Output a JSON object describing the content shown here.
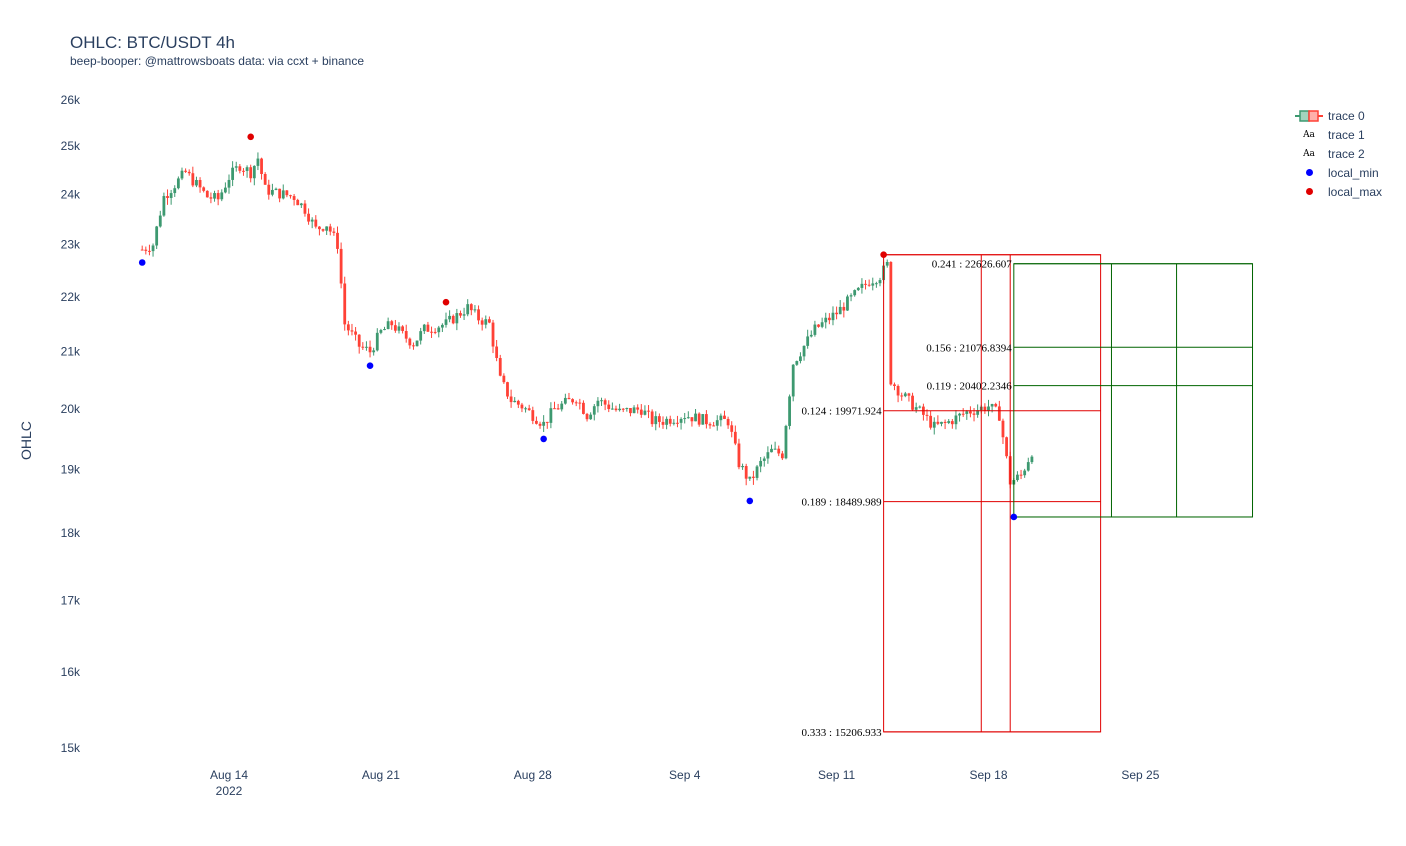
{
  "header": {
    "title": "OHLC: BTC/USDT 4h",
    "subtitle": "beep-booper: @mattrowsboats data: via ccxt + binance"
  },
  "legend": [
    {
      "label": "trace 0",
      "icon": "candlestick-icon"
    },
    {
      "label": "trace 1",
      "icon": "text-aa-icon"
    },
    {
      "label": "trace 2",
      "icon": "text-aa-icon"
    },
    {
      "label": "local_min",
      "icon": "dot-icon",
      "color": "#0000ff"
    },
    {
      "label": "local_max",
      "icon": "dot-icon",
      "color": "#e00000"
    }
  ],
  "chart_data": {
    "type": "candlestick",
    "title": "OHLC: BTC/USDT 4h",
    "subtitle": "beep-booper: @mattrowsboats data: via ccxt + binance",
    "ylabel": "OHLC",
    "xlabel": "",
    "yscale": "log",
    "ylim": [
      14900,
      26300
    ],
    "xlim": [
      "2022-08-08",
      "2022-10-01"
    ],
    "yticks": [
      {
        "value": 15000,
        "label": "15k"
      },
      {
        "value": 16000,
        "label": "16k"
      },
      {
        "value": 17000,
        "label": "17k"
      },
      {
        "value": 18000,
        "label": "18k"
      },
      {
        "value": 19000,
        "label": "19k"
      },
      {
        "value": 20000,
        "label": "20k"
      },
      {
        "value": 21000,
        "label": "21k"
      },
      {
        "value": 22000,
        "label": "22k"
      },
      {
        "value": 23000,
        "label": "23k"
      },
      {
        "value": 24000,
        "label": "24k"
      },
      {
        "value": 25000,
        "label": "25k"
      },
      {
        "value": 26000,
        "label": "26k"
      }
    ],
    "xticks": [
      {
        "date": "2022-08-14",
        "label": "Aug 14",
        "sublabel": "2022"
      },
      {
        "date": "2022-08-21",
        "label": "Aug 21",
        "sublabel": ""
      },
      {
        "date": "2022-08-28",
        "label": "Aug 28",
        "sublabel": ""
      },
      {
        "date": "2022-09-04",
        "label": "Sep 4",
        "sublabel": ""
      },
      {
        "date": "2022-09-11",
        "label": "Sep 11",
        "sublabel": ""
      },
      {
        "date": "2022-09-18",
        "label": "Sep 18",
        "sublabel": ""
      },
      {
        "date": "2022-09-25",
        "label": "Sep 25",
        "sublabel": ""
      }
    ],
    "grid": false,
    "legend_position": "top-right",
    "colors": {
      "increasing": "#3d9970",
      "decreasing": "#ff4136",
      "local_min": "#0000ff",
      "local_max": "#e00000",
      "fib_red": "#e00000",
      "fib_green": "#006400"
    },
    "price_path": [
      [
        "2022-08-10T00:00",
        22900
      ],
      [
        "2022-08-10T12:00",
        23000
      ],
      [
        "2022-08-11T00:00",
        23950
      ],
      [
        "2022-08-11T12:00",
        24200
      ],
      [
        "2022-08-12T00:00",
        24450
      ],
      [
        "2022-08-12T12:00",
        24200
      ],
      [
        "2022-08-13T00:00",
        23950
      ],
      [
        "2022-08-13T12:00",
        23900
      ],
      [
        "2022-08-14T00:00",
        24350
      ],
      [
        "2022-08-14T12:00",
        24600
      ],
      [
        "2022-08-15T00:00",
        24450
      ],
      [
        "2022-08-15T08:00",
        24750
      ],
      [
        "2022-08-15T16:00",
        24100
      ],
      [
        "2022-08-16T00:00",
        24050
      ],
      [
        "2022-08-17T00:00",
        23950
      ],
      [
        "2022-08-17T12:00",
        23700
      ],
      [
        "2022-08-18T00:00",
        23300
      ],
      [
        "2022-08-18T12:00",
        23400
      ],
      [
        "2022-08-19T00:00",
        23000
      ],
      [
        "2022-08-19T08:00",
        21500
      ],
      [
        "2022-08-19T16:00",
        21300
      ],
      [
        "2022-08-20T00:00",
        21100
      ],
      [
        "2022-08-20T12:00",
        21000
      ],
      [
        "2022-08-21T00:00",
        21350
      ],
      [
        "2022-08-21T12:00",
        21500
      ],
      [
        "2022-08-22T00:00",
        21300
      ],
      [
        "2022-08-22T12:00",
        21150
      ],
      [
        "2022-08-23T00:00",
        21400
      ],
      [
        "2022-08-24T00:00",
        21500
      ],
      [
        "2022-08-25T00:00",
        21800
      ],
      [
        "2022-08-25T12:00",
        21600
      ],
      [
        "2022-08-26T00:00",
        21500
      ],
      [
        "2022-08-26T12:00",
        20500
      ],
      [
        "2022-08-27T00:00",
        20150
      ],
      [
        "2022-08-27T12:00",
        20050
      ],
      [
        "2022-08-28T00:00",
        19900
      ],
      [
        "2022-08-28T12:00",
        19750
      ],
      [
        "2022-08-29T00:00",
        20000
      ],
      [
        "2022-08-30T00:00",
        20200
      ],
      [
        "2022-08-30T12:00",
        19900
      ],
      [
        "2022-08-31T00:00",
        20150
      ],
      [
        "2022-09-01T00:00",
        19950
      ],
      [
        "2022-09-02T00:00",
        20000
      ],
      [
        "2022-09-02T12:00",
        19800
      ],
      [
        "2022-09-03T00:00",
        19800
      ],
      [
        "2022-09-04T00:00",
        19900
      ],
      [
        "2022-09-05T00:00",
        19800
      ],
      [
        "2022-09-06T00:00",
        19800
      ],
      [
        "2022-09-06T12:00",
        19100
      ],
      [
        "2022-09-07T00:00",
        18800
      ],
      [
        "2022-09-07T12:00",
        19100
      ],
      [
        "2022-09-08T00:00",
        19300
      ],
      [
        "2022-09-08T12:00",
        19250
      ],
      [
        "2022-09-09T00:00",
        20800
      ],
      [
        "2022-09-10T00:00",
        21400
      ],
      [
        "2022-09-11T00:00",
        21700
      ],
      [
        "2022-09-12T00:00",
        22100
      ],
      [
        "2022-09-12T12:00",
        22300
      ],
      [
        "2022-09-13T00:00",
        22400
      ],
      [
        "2022-09-13T08:00",
        22600
      ],
      [
        "2022-09-13T12:00",
        20500
      ],
      [
        "2022-09-14T00:00",
        20250
      ],
      [
        "2022-09-15T00:00",
        19900
      ],
      [
        "2022-09-15T12:00",
        19700
      ],
      [
        "2022-09-16T00:00",
        19750
      ],
      [
        "2022-09-17T00:00",
        19950
      ],
      [
        "2022-09-18T00:00",
        20050
      ],
      [
        "2022-09-18T12:00",
        19900
      ],
      [
        "2022-09-19T00:00",
        18800
      ],
      [
        "2022-09-19T12:00",
        18900
      ],
      [
        "2022-09-20T00:00",
        19300
      ]
    ],
    "local_min": [
      {
        "date": "2022-08-10T00:00",
        "value": 22650
      },
      {
        "date": "2022-08-20T12:00",
        "value": 20750
      },
      {
        "date": "2022-08-28T12:00",
        "value": 19500
      },
      {
        "date": "2022-09-07T00:00",
        "value": 18500
      },
      {
        "date": "2022-09-19T04:00",
        "value": 18250
      }
    ],
    "local_max": [
      {
        "date": "2022-08-15T00:00",
        "value": 25200
      },
      {
        "date": "2022-08-24T00:00",
        "value": 21900
      },
      {
        "date": "2022-09-13T04:00",
        "value": 22800
      }
    ],
    "fib_red": {
      "x0": "2022-09-13T04:00",
      "x1": "2022-09-23T04:00",
      "vlines": [
        "2022-09-17T16:00",
        "2022-09-19T00:00"
      ],
      "levels": [
        {
          "value": 22800,
          "label": ""
        },
        {
          "value": 19971.924,
          "label": "0.124 : 19971.924"
        },
        {
          "value": 18489.989,
          "label": "0.189 : 18489.989"
        },
        {
          "value": 15206.933,
          "label": "0.333 : 15206.933"
        }
      ]
    },
    "fib_green": {
      "x0": "2022-09-19T04:00",
      "x1": "2022-09-30T04:00",
      "vlines": [
        "2022-09-23T16:00",
        "2022-09-26T16:00"
      ],
      "levels": [
        {
          "value": 22626.607,
          "label": "0.241 : 22626.607"
        },
        {
          "value": 21076.8394,
          "label": "0.156 : 21076.8394"
        },
        {
          "value": 20402.2346,
          "label": "0.119 : 20402.2346"
        },
        {
          "value": 18250,
          "label": ""
        }
      ]
    }
  }
}
